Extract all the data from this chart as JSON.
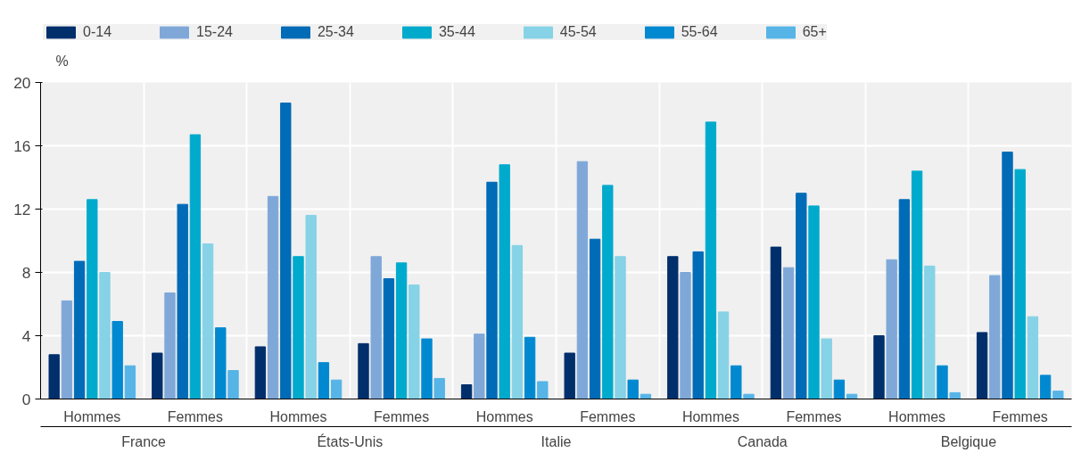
{
  "chart_data": {
    "type": "bar",
    "ylabel": "%",
    "categories": [
      "Hommes",
      "Femmes",
      "Hommes",
      "Femmes",
      "Hommes",
      "Femmes",
      "Hommes",
      "Femmes",
      "Hommes",
      "Femmes"
    ],
    "annotations": [
      "France",
      "États-Unis",
      "Italie",
      "Canada",
      "Belgique"
    ],
    "series": [
      {
        "name": "0-14",
        "color": "#002f6c",
        "values": [
          2.8,
          2.9,
          3.3,
          3.5,
          0.9,
          2.9,
          9.0,
          9.6,
          4.0,
          4.2
        ]
      },
      {
        "name": "15-24",
        "color": "#7fa8d9",
        "values": [
          6.2,
          6.7,
          12.8,
          9.0,
          4.1,
          15.0,
          8.0,
          8.3,
          8.8,
          7.8
        ]
      },
      {
        "name": "25-34",
        "color": "#006bb6",
        "values": [
          8.7,
          12.3,
          18.7,
          7.6,
          13.7,
          10.1,
          9.3,
          13.0,
          12.6,
          15.6
        ]
      },
      {
        "name": "35-44",
        "color": "#00aacc",
        "values": [
          12.6,
          16.7,
          9.0,
          8.6,
          14.8,
          13.5,
          17.5,
          12.2,
          14.4,
          14.5
        ]
      },
      {
        "name": "45-54",
        "color": "#86d2e6",
        "values": [
          8.0,
          9.8,
          11.6,
          7.2,
          9.7,
          9.0,
          5.5,
          3.8,
          8.4,
          5.2
        ]
      },
      {
        "name": "55-64",
        "color": "#0089d0",
        "values": [
          4.9,
          4.5,
          2.3,
          3.8,
          3.9,
          1.2,
          2.1,
          1.2,
          2.1,
          1.5
        ]
      },
      {
        "name": "65+",
        "color": "#56b4e6",
        "values": [
          2.1,
          1.8,
          1.2,
          1.3,
          1.1,
          0.3,
          0.3,
          0.3,
          0.4,
          0.5
        ]
      }
    ],
    "ylim": [
      0,
      20
    ],
    "yticks": [
      0,
      4,
      8,
      12,
      16,
      20
    ],
    "grid": true,
    "legend": "top"
  }
}
